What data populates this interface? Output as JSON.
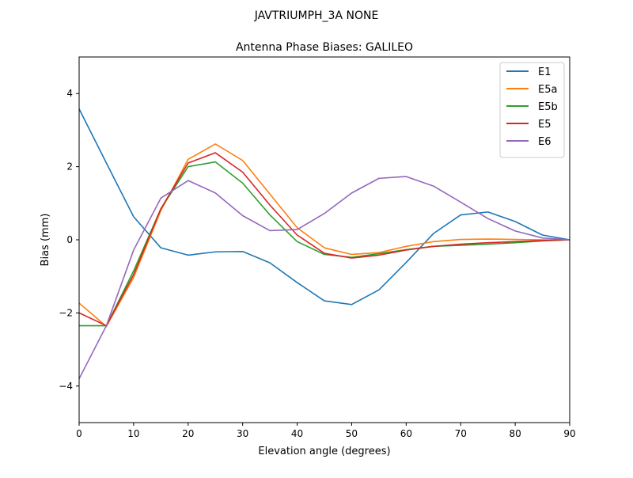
{
  "chart_data": {
    "type": "line",
    "suptitle": "JAVTRIUMPH_3A   NONE",
    "title": "Antenna Phase Biases: GALILEO",
    "xlabel": "Elevation angle (degrees)",
    "ylabel": "Bias (mm)",
    "xlim": [
      0,
      90
    ],
    "ylim": [
      -5,
      5
    ],
    "xticks": [
      0,
      10,
      20,
      30,
      40,
      50,
      60,
      70,
      80,
      90
    ],
    "yticks": [
      -4,
      -2,
      0,
      2,
      4
    ],
    "ytick_labels": [
      "−4",
      "−2",
      "0",
      "2",
      "4"
    ],
    "grid": false,
    "legend_position": "top-right",
    "x": [
      0,
      5,
      10,
      15,
      20,
      25,
      30,
      35,
      40,
      45,
      50,
      55,
      60,
      65,
      70,
      75,
      80,
      85,
      90
    ],
    "series": [
      {
        "name": "E1",
        "color": "#1f77b4",
        "values": [
          3.58,
          2.1,
          0.63,
          -0.22,
          -0.42,
          -0.33,
          -0.32,
          -0.63,
          -1.17,
          -1.67,
          -1.77,
          -1.37,
          -0.62,
          0.17,
          0.68,
          0.76,
          0.5,
          0.13,
          0.0
        ]
      },
      {
        "name": "E5a",
        "color": "#ff7f0e",
        "values": [
          -1.73,
          -2.37,
          -1.03,
          0.8,
          2.2,
          2.62,
          2.17,
          1.25,
          0.33,
          -0.22,
          -0.4,
          -0.35,
          -0.18,
          -0.05,
          0.01,
          0.02,
          0.01,
          0.0,
          0.0
        ]
      },
      {
        "name": "E5b",
        "color": "#2ca02c",
        "values": [
          -2.35,
          -2.35,
          -0.85,
          0.85,
          2.0,
          2.13,
          1.55,
          0.68,
          -0.05,
          -0.4,
          -0.48,
          -0.38,
          -0.27,
          -0.18,
          -0.15,
          -0.12,
          -0.08,
          -0.03,
          0.0
        ]
      },
      {
        "name": "E5",
        "color": "#d62728",
        "values": [
          -2.0,
          -2.35,
          -0.95,
          0.85,
          2.1,
          2.38,
          1.85,
          0.95,
          0.13,
          -0.37,
          -0.5,
          -0.42,
          -0.28,
          -0.18,
          -0.12,
          -0.08,
          -0.05,
          -0.02,
          0.0
        ]
      },
      {
        "name": "E6",
        "color": "#9467bd",
        "values": [
          -3.8,
          -2.35,
          -0.28,
          1.14,
          1.62,
          1.28,
          0.66,
          0.25,
          0.28,
          0.72,
          1.28,
          1.68,
          1.73,
          1.47,
          1.03,
          0.58,
          0.24,
          0.05,
          0.0
        ]
      }
    ]
  }
}
